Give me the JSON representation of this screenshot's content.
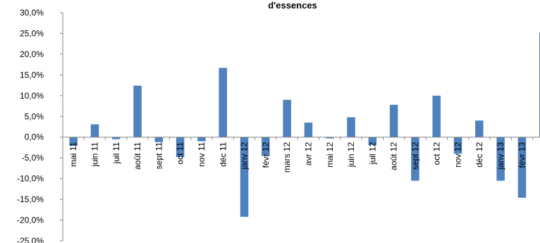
{
  "chart_data": {
    "type": "bar",
    "title": "d'essences",
    "xlabel": "",
    "ylabel": "",
    "ylim": [
      -25,
      30
    ],
    "ytick_step": 5,
    "ytick_labels": [
      "30,0%",
      "25,0%",
      "20,0%",
      "15,0%",
      "10,0%",
      "5,0%",
      "0,0%",
      "-5,0%",
      "-10,0%",
      "-15,0%",
      "-20,0%",
      "-25,0%"
    ],
    "grid": false,
    "legend": "none",
    "bar_color": "#4F81BD",
    "categories": [
      "mai 11",
      "juin 11",
      "juil 11",
      "août 11",
      "sept 11",
      "oct 11",
      "nov 11",
      "déc 11",
      "janv 12",
      "févr 12",
      "mars 12",
      "avr 12",
      "mai 12",
      "juin 12",
      "juil 12",
      "août 12",
      "sept 12",
      "oct 12",
      "nov 12",
      "déc 12",
      "janv 13",
      "févr 13",
      "mars 13"
    ],
    "values": [
      -2.1,
      3.1,
      -0.5,
      12.4,
      -1.2,
      -4.8,
      -1.0,
      16.7,
      -19.2,
      -4.5,
      9.0,
      3.5,
      -0.3,
      4.8,
      -1.9,
      7.8,
      -10.5,
      10.0,
      -4.0,
      4.0,
      -10.5,
      -14.6,
      25.2
    ]
  }
}
